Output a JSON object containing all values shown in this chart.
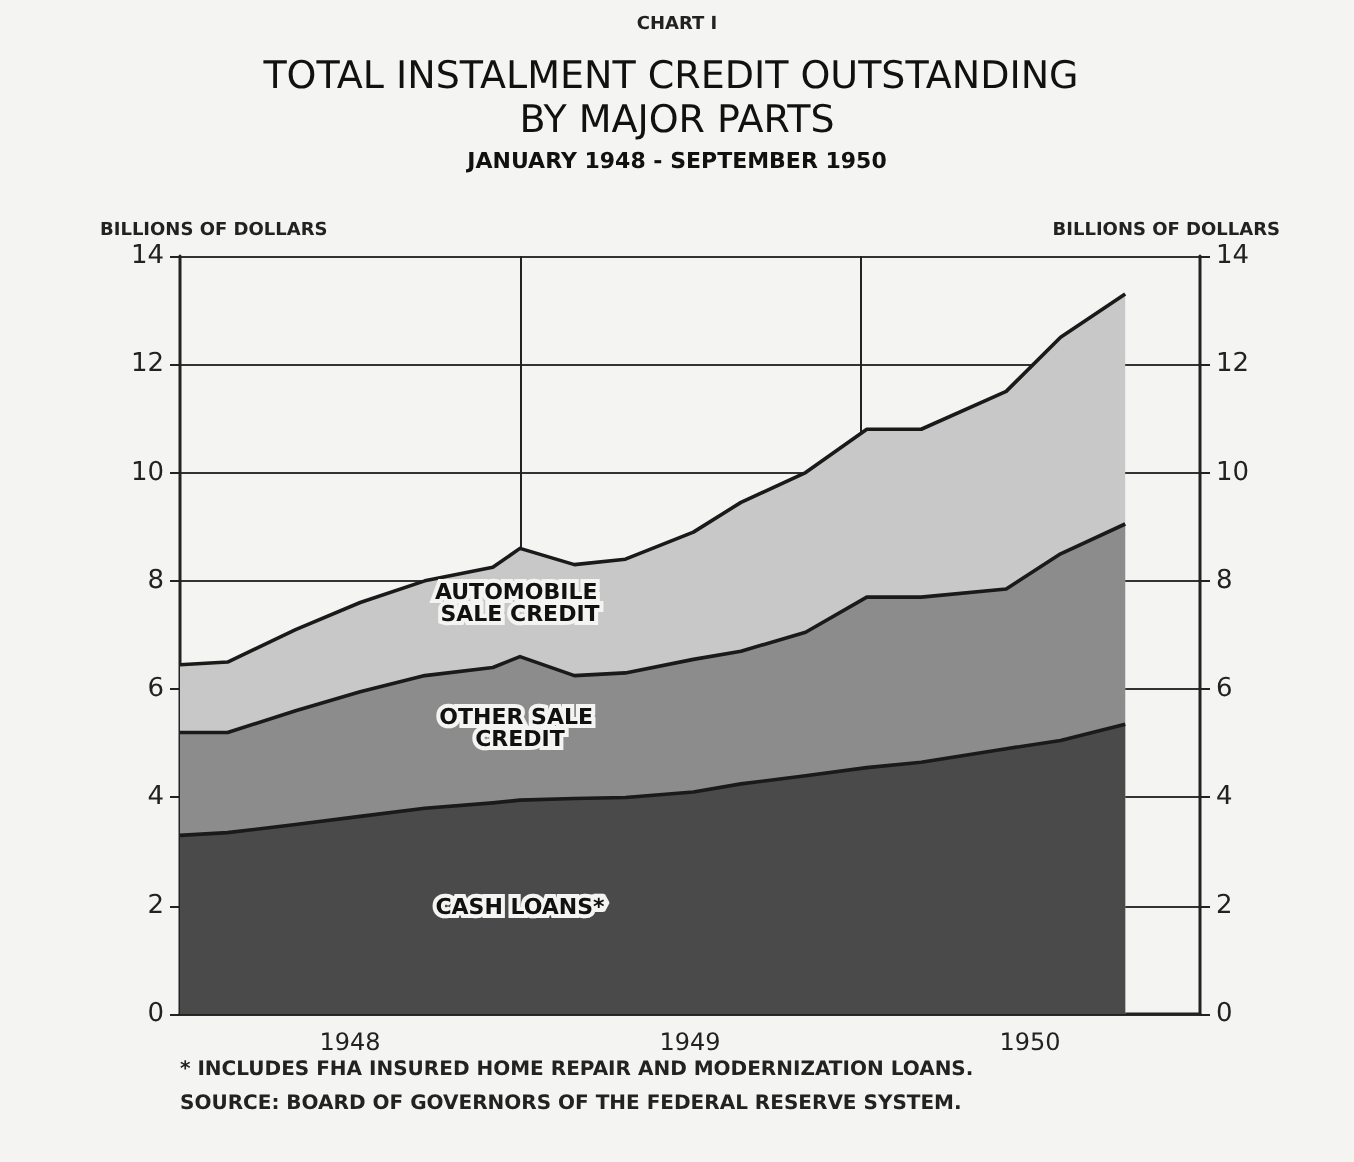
{
  "chart_data": {
    "type": "area",
    "title": "TOTAL INSTALMENT CREDIT OUTSTANDING BY MAJOR PARTS",
    "subtitle": "JANUARY 1948 - SEPTEMBER 1950",
    "ylabel": "BILLIONS OF DOLLARS",
    "y2label": "BILLIONS OF DOLLARS",
    "annotations": [
      "CHART I",
      "* INCLUDES FHA INSURED HOME REPAIR AND MODERNIZATION LOANS.",
      "SOURCE: BOARD OF GOVERNORS OF THE FEDERAL RESERVE SYSTEM."
    ],
    "x": [
      1948.0,
      1948.14,
      1948.34,
      1948.53,
      1948.72,
      1948.92,
      1949.0,
      1949.16,
      1949.31,
      1949.51,
      1949.65,
      1949.84,
      1950.02,
      1950.18,
      1950.43,
      1950.59,
      1950.78
    ],
    "stacked": true,
    "series": [
      {
        "name": "CASH LOANS*",
        "color": "#4a4a4a",
        "values": [
          3.3,
          3.35,
          3.5,
          3.65,
          3.8,
          3.9,
          3.95,
          3.98,
          4.0,
          4.1,
          4.25,
          4.4,
          4.55,
          4.65,
          4.9,
          5.05,
          5.35
        ]
      },
      {
        "name": "OTHER SALE CREDIT",
        "color": "#8c8c8c",
        "values": [
          1.9,
          1.85,
          2.1,
          2.3,
          2.45,
          2.5,
          2.65,
          2.27,
          2.3,
          2.45,
          2.45,
          2.65,
          3.15,
          3.05,
          2.95,
          3.45,
          3.7
        ]
      },
      {
        "name": "AUTOMOBILE SALE CREDIT",
        "color": "#c8c8c8",
        "values": [
          1.25,
          1.3,
          1.5,
          1.65,
          1.75,
          1.85,
          2.0,
          2.05,
          2.1,
          2.35,
          2.75,
          2.95,
          3.1,
          3.1,
          3.65,
          4.0,
          4.25
        ]
      }
    ],
    "xlim": [
      1948,
      1951
    ],
    "xticks": [
      {
        "value": 1948.5,
        "label": "1948"
      },
      {
        "value": 1949.5,
        "label": "1949"
      },
      {
        "value": 1950.5,
        "label": "1950"
      }
    ],
    "ylim": [
      0,
      14
    ],
    "yticks": [
      0,
      2,
      4,
      6,
      8,
      10,
      12,
      14
    ],
    "y2lim": [
      0,
      14
    ],
    "y2ticks": [
      0,
      2,
      4,
      6,
      8,
      10,
      12,
      14
    ],
    "ref_lines": [
      {
        "axis": "x",
        "value": 1949,
        "label": null
      },
      {
        "axis": "x",
        "value": 1950,
        "label": null
      }
    ],
    "grid": "y",
    "legend": false
  }
}
